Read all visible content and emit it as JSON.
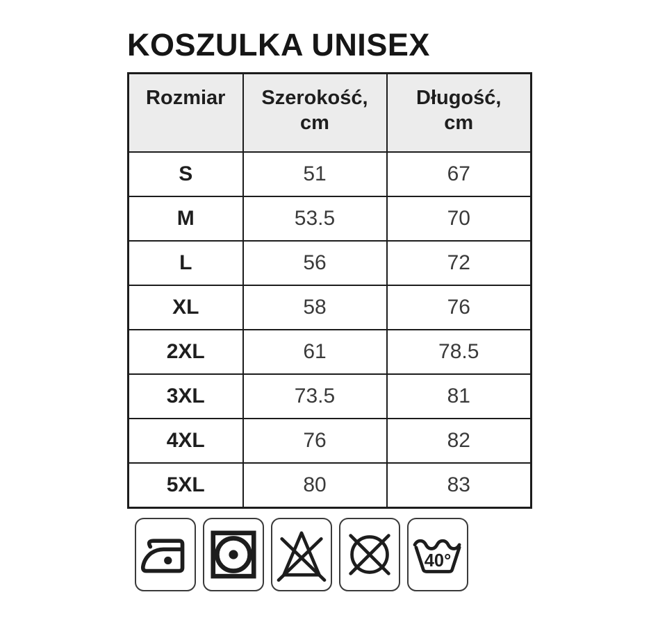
{
  "title": "KOSZULKA UNISEX",
  "table": {
    "headers": [
      "Rozmiar",
      "Szerokość,\ncm",
      "Długość,\ncm"
    ],
    "rows": [
      {
        "size": "S",
        "width": "51",
        "length": "67"
      },
      {
        "size": "M",
        "width": "53.5",
        "length": "70"
      },
      {
        "size": "L",
        "width": "56",
        "length": "72"
      },
      {
        "size": "XL",
        "width": "58",
        "length": "76"
      },
      {
        "size": "2XL",
        "width": "61",
        "length": "78.5"
      },
      {
        "size": "3XL",
        "width": "73.5",
        "length": "81"
      },
      {
        "size": "4XL",
        "width": "76",
        "length": "82"
      },
      {
        "size": "5XL",
        "width": "80",
        "length": "83"
      }
    ]
  },
  "chart_data": {
    "type": "table",
    "title": "KOSZULKA UNISEX",
    "columns": [
      "Rozmiar",
      "Szerokość, cm",
      "Długość, cm"
    ],
    "rows": [
      [
        "S",
        51,
        67
      ],
      [
        "M",
        53.5,
        70
      ],
      [
        "L",
        56,
        72
      ],
      [
        "XL",
        58,
        76
      ],
      [
        "2XL",
        61,
        78.5
      ],
      [
        "3XL",
        73.5,
        81
      ],
      [
        "4XL",
        76,
        82
      ],
      [
        "5XL",
        80,
        83
      ]
    ]
  },
  "care_symbols": [
    {
      "name": "iron-one-dot-icon"
    },
    {
      "name": "tumble-dry-one-dot-icon"
    },
    {
      "name": "do-not-bleach-icon"
    },
    {
      "name": "do-not-dry-clean-icon"
    },
    {
      "name": "wash-40-icon",
      "label": "40°"
    }
  ],
  "colors": {
    "table_border": "#1c1c1c",
    "header_bg": "#ececec",
    "title_text": "#161616",
    "label_text": "#1e1e1e",
    "value_text": "#3a3a3a",
    "icon_stroke": "#1d1d1d",
    "background": "#ffffff"
  }
}
